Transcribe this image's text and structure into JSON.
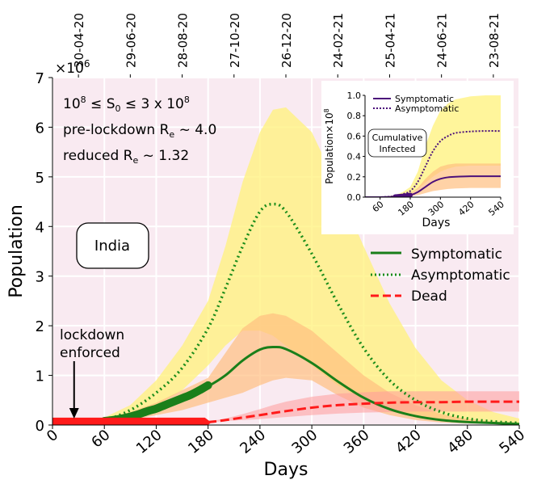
{
  "chart_data": [
    {
      "type": "line",
      "xlabel": "Days",
      "ylabel": "Population",
      "xlim": [
        0,
        540
      ],
      "ylim": [
        0,
        7
      ],
      "y_multiplier_label": "×10",
      "y_multiplier_exp": "6",
      "background": "#f9eaf1",
      "grid": true,
      "x_ticks": [
        0,
        60,
        120,
        180,
        240,
        300,
        360,
        420,
        480,
        540
      ],
      "y_ticks": [
        0,
        1,
        2,
        3,
        4,
        5,
        6,
        7
      ],
      "top_axis_ticks": [
        {
          "x": 30,
          "label": "30-04-20"
        },
        {
          "x": 90,
          "label": "29-06-20"
        },
        {
          "x": 150,
          "label": "28-08-20"
        },
        {
          "x": 210,
          "label": "27-10-20"
        },
        {
          "x": 270,
          "label": "26-12-20"
        },
        {
          "x": 330,
          "label": "24-02-21"
        },
        {
          "x": 390,
          "label": "25-04-21"
        },
        {
          "x": 450,
          "label": "24-06-21"
        },
        {
          "x": 510,
          "label": "23-08-21"
        }
      ],
      "annotations": {
        "line1_prefix": "10",
        "line1_sup": "8",
        "line1_mid": " ≤ S",
        "line1_sub": "0",
        "line1_rest": " ≤ 3 x 10",
        "line1_sup2": "8",
        "line2_prefix": "pre-lockdown R",
        "line2_sub": "e",
        "line2_rest": " ~  4.0",
        "line3_prefix": "reduced R",
        "line3_sub": "e",
        "line3_rest": " ~  1.32",
        "country": "India",
        "lockdown_line1": "lockdown",
        "lockdown_line2": "enforced",
        "lockdown_day": 25
      },
      "colors": {
        "symptomatic": "#1a7f1a",
        "asymptomatic": "#1a8c1a",
        "dead": "#ff1a1a",
        "band_asym": "#fff27a",
        "band_sym": "#ffbf80",
        "band_dead": "#ff9a9a"
      },
      "series": [
        {
          "name": "Symptomatic",
          "style": "solid",
          "x": [
            0,
            30,
            60,
            90,
            120,
            150,
            180,
            200,
            220,
            240,
            255,
            270,
            300,
            330,
            360,
            390,
            420,
            450,
            480,
            510,
            540
          ],
          "y": [
            0.05,
            0.05,
            0.08,
            0.18,
            0.33,
            0.52,
            0.78,
            1.0,
            1.3,
            1.52,
            1.57,
            1.53,
            1.25,
            0.88,
            0.55,
            0.32,
            0.18,
            0.1,
            0.06,
            0.04,
            0.02
          ],
          "band_low": [
            0,
            0,
            0.04,
            0.1,
            0.2,
            0.3,
            0.45,
            0.55,
            0.65,
            0.8,
            0.9,
            0.95,
            0.9,
            0.6,
            0.35,
            0.2,
            0.1,
            0.05,
            0.03,
            0.02,
            0.01
          ],
          "band_high": [
            0.08,
            0.08,
            0.12,
            0.26,
            0.45,
            0.7,
            0.95,
            1.45,
            1.95,
            2.2,
            2.25,
            2.2,
            1.9,
            1.45,
            1.0,
            0.65,
            0.4,
            0.22,
            0.12,
            0.07,
            0.04
          ]
        },
        {
          "name": "Asymptomatic",
          "style": "dotted",
          "x": [
            0,
            30,
            60,
            90,
            120,
            150,
            180,
            200,
            220,
            240,
            255,
            270,
            300,
            330,
            360,
            390,
            420,
            450,
            480,
            510,
            540
          ],
          "y": [
            0.05,
            0.05,
            0.1,
            0.3,
            0.65,
            1.15,
            1.95,
            2.75,
            3.6,
            4.3,
            4.45,
            4.3,
            3.45,
            2.45,
            1.55,
            0.9,
            0.5,
            0.26,
            0.13,
            0.07,
            0.04
          ],
          "band_low": [
            0,
            0,
            0.06,
            0.2,
            0.4,
            0.7,
            1.2,
            1.6,
            1.9,
            1.9,
            1.8,
            1.6,
            1.2,
            0.8,
            0.5,
            0.3,
            0.15,
            0.08,
            0.05,
            0.03,
            0.01
          ],
          "band_high": [
            0.1,
            0.1,
            0.15,
            0.4,
            0.9,
            1.6,
            2.5,
            3.6,
            4.9,
            5.9,
            6.35,
            6.4,
            5.9,
            4.8,
            3.6,
            2.45,
            1.55,
            0.9,
            0.5,
            0.26,
            0.13
          ]
        },
        {
          "name": "Dead",
          "style": "dashed",
          "x": [
            0,
            30,
            60,
            90,
            120,
            150,
            180,
            200,
            220,
            240,
            255,
            270,
            300,
            330,
            360,
            390,
            420,
            450,
            480,
            510,
            540
          ],
          "y": [
            0.05,
            0.05,
            0.05,
            0.05,
            0.06,
            0.06,
            0.06,
            0.1,
            0.15,
            0.2,
            0.24,
            0.28,
            0.35,
            0.4,
            0.43,
            0.45,
            0.46,
            0.46,
            0.47,
            0.47,
            0.47
          ],
          "band_low": [
            0.04,
            0.04,
            0.04,
            0.04,
            0.05,
            0.05,
            0.05,
            0.08,
            0.1,
            0.12,
            0.14,
            0.16,
            0.2,
            0.23,
            0.25,
            0.26,
            0.27,
            0.27,
            0.27,
            0.27,
            0.27
          ],
          "band_high": [
            0.06,
            0.06,
            0.06,
            0.06,
            0.07,
            0.07,
            0.07,
            0.13,
            0.22,
            0.32,
            0.4,
            0.47,
            0.57,
            0.63,
            0.66,
            0.68,
            0.68,
            0.68,
            0.68,
            0.68,
            0.68
          ]
        }
      ],
      "observed": {
        "symptomatic_x": [
          60,
          70,
          80,
          90,
          100,
          110,
          120,
          130,
          140,
          150,
          160,
          170,
          180
        ],
        "symptomatic_y": [
          0.08,
          0.1,
          0.13,
          0.17,
          0.22,
          0.28,
          0.33,
          0.4,
          0.47,
          0.54,
          0.61,
          0.7,
          0.8
        ],
        "dead_x": [
          0,
          180
        ],
        "dead_y": [
          0.05,
          0.05
        ]
      }
    },
    {
      "type": "line",
      "xlabel": "Days",
      "ylabel": "Population×10",
      "ylabel_sup": "8",
      "xlim": [
        0,
        540
      ],
      "ylim": [
        0,
        1.0
      ],
      "x_ticks": [
        60,
        180,
        300,
        420,
        540
      ],
      "y_ticks": [
        0.0,
        0.2,
        0.4,
        0.6,
        0.8,
        1.0
      ],
      "y_tick_labels": [
        "0.0",
        "0.2",
        "0.4",
        "0.6",
        "0.8",
        "1.0"
      ],
      "box_label_line1": "Cumulative",
      "box_label_line2": "Infected",
      "colors": {
        "symptomatic": "#4b0f7a",
        "asymptomatic": "#4b0f7a",
        "band_asym": "#fff27a",
        "band_sym": "#ffbf80"
      },
      "series": [
        {
          "name": "Symptomatic",
          "style": "solid",
          "x": [
            0,
            60,
            120,
            150,
            180,
            210,
            240,
            270,
            300,
            330,
            360,
            420,
            480,
            540
          ],
          "y": [
            0,
            0,
            0.005,
            0.01,
            0.02,
            0.05,
            0.1,
            0.15,
            0.18,
            0.195,
            0.2,
            0.205,
            0.205,
            0.205
          ],
          "band_low": [
            0,
            0,
            0,
            0.005,
            0.01,
            0.02,
            0.04,
            0.06,
            0.07,
            0.08,
            0.085,
            0.09,
            0.09,
            0.09
          ],
          "band_high": [
            0,
            0,
            0.01,
            0.02,
            0.04,
            0.09,
            0.18,
            0.25,
            0.3,
            0.32,
            0.33,
            0.33,
            0.33,
            0.33
          ]
        },
        {
          "name": "Asymptomatic",
          "style": "dotted",
          "x": [
            0,
            60,
            120,
            150,
            180,
            210,
            240,
            270,
            300,
            330,
            360,
            420,
            480,
            540
          ],
          "y": [
            0,
            0,
            0.01,
            0.03,
            0.06,
            0.15,
            0.3,
            0.45,
            0.55,
            0.6,
            0.63,
            0.645,
            0.65,
            0.65
          ],
          "band_low": [
            0,
            0,
            0.005,
            0.015,
            0.03,
            0.08,
            0.14,
            0.2,
            0.25,
            0.28,
            0.3,
            0.31,
            0.31,
            0.31
          ],
          "band_high": [
            0,
            0,
            0.02,
            0.05,
            0.1,
            0.25,
            0.5,
            0.7,
            0.85,
            0.92,
            0.96,
            0.99,
            1.0,
            1.0
          ]
        }
      ],
      "observed": {
        "symptomatic_x": [
          120,
          130,
          140,
          150,
          160,
          170,
          180
        ],
        "symptomatic_y": [
          0.004,
          0.006,
          0.008,
          0.01,
          0.013,
          0.016,
          0.02
        ]
      }
    }
  ]
}
